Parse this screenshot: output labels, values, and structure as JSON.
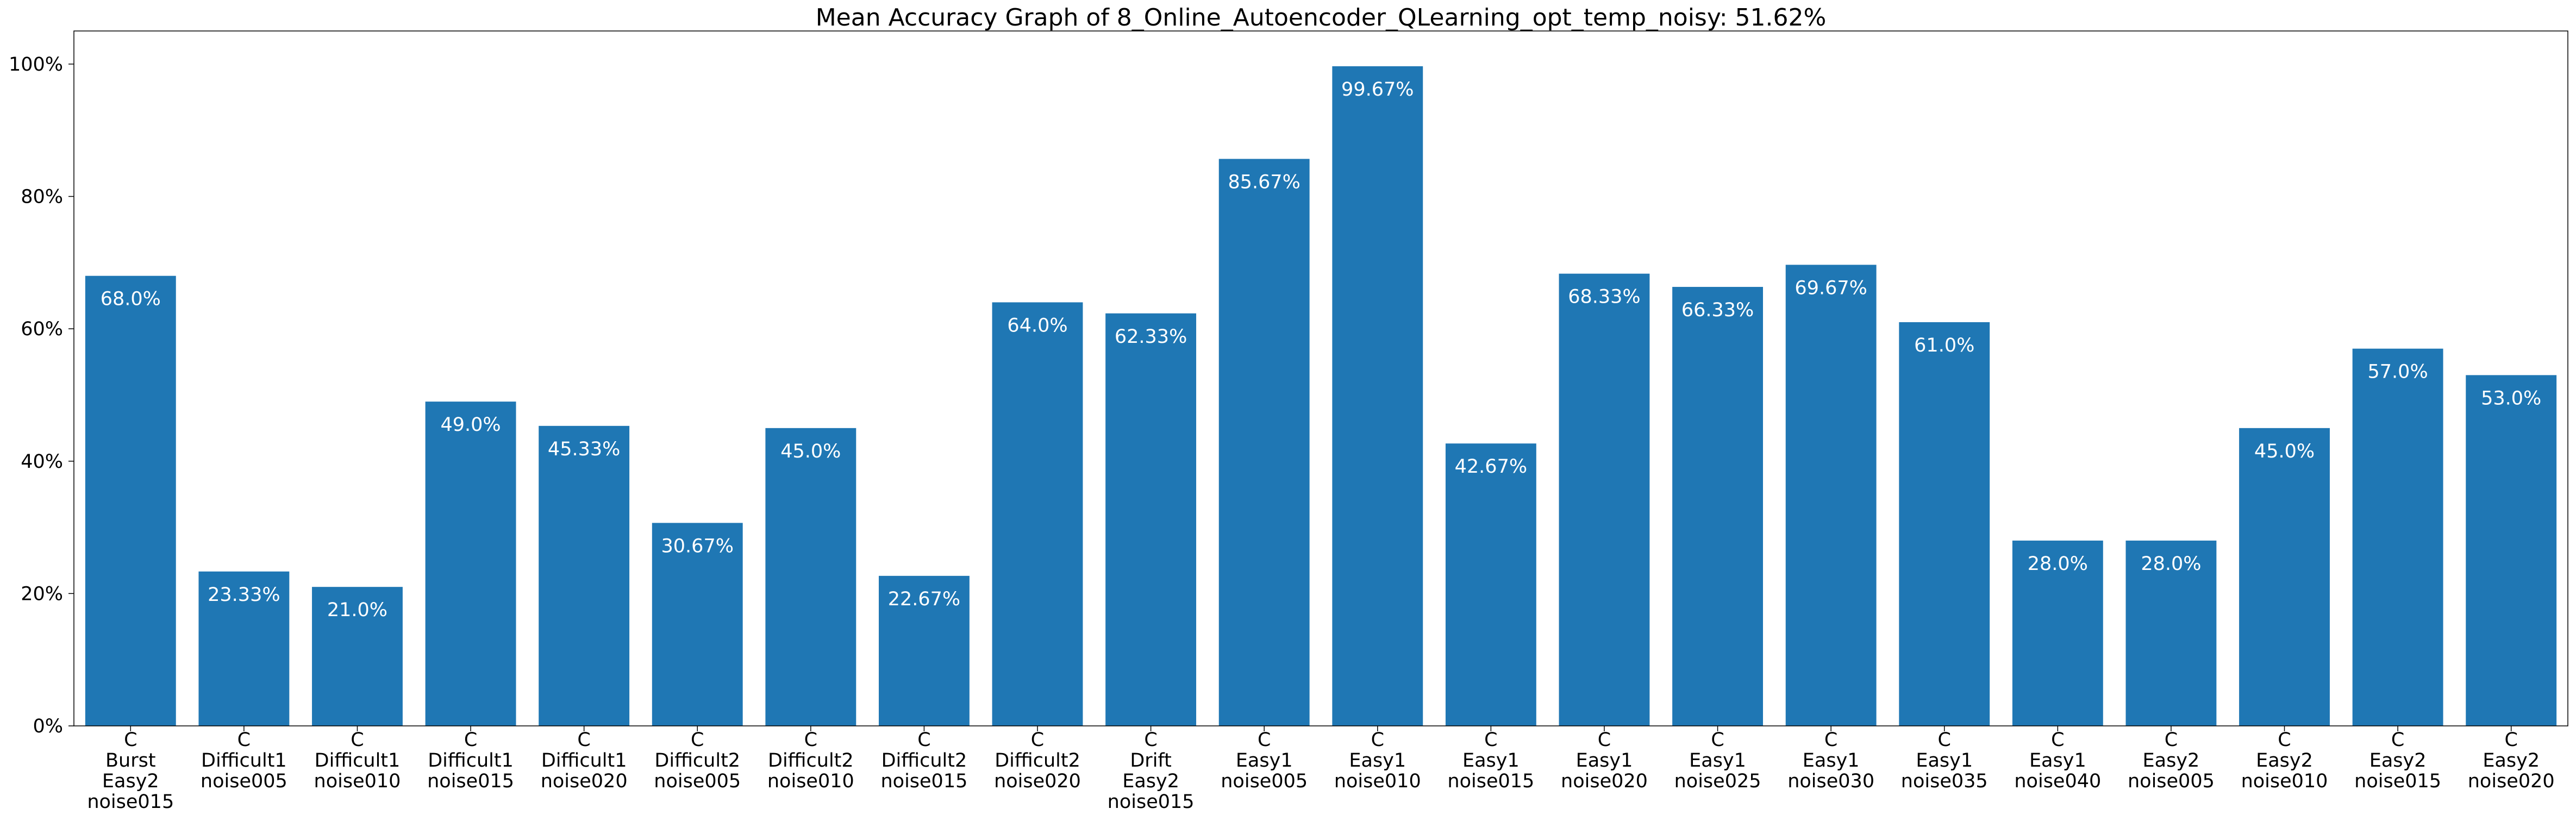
{
  "chart_data": {
    "type": "bar",
    "title": "Mean Accuracy Graph of 8_Online_Autoencoder_QLearning_opt_temp_noisy: 51.62%",
    "xlabel": "",
    "ylabel": "",
    "ylim": [
      0,
      105
    ],
    "yticks": [
      0,
      20,
      40,
      60,
      80,
      100
    ],
    "ytick_labels": [
      "0%",
      "20%",
      "40%",
      "60%",
      "80%",
      "100%"
    ],
    "bar_color": "#1f77b4",
    "grid": false,
    "categories": [
      [
        "C",
        "Burst",
        "Easy2",
        "noise015"
      ],
      [
        "C",
        "Difficult1",
        "noise005"
      ],
      [
        "C",
        "Difficult1",
        "noise010"
      ],
      [
        "C",
        "Difficult1",
        "noise015"
      ],
      [
        "C",
        "Difficult1",
        "noise020"
      ],
      [
        "C",
        "Difficult2",
        "noise005"
      ],
      [
        "C",
        "Difficult2",
        "noise010"
      ],
      [
        "C",
        "Difficult2",
        "noise015"
      ],
      [
        "C",
        "Difficult2",
        "noise020"
      ],
      [
        "C",
        "Drift",
        "Easy2",
        "noise015"
      ],
      [
        "C",
        "Easy1",
        "noise005"
      ],
      [
        "C",
        "Easy1",
        "noise010"
      ],
      [
        "C",
        "Easy1",
        "noise015"
      ],
      [
        "C",
        "Easy1",
        "noise020"
      ],
      [
        "C",
        "Easy1",
        "noise025"
      ],
      [
        "C",
        "Easy1",
        "noise030"
      ],
      [
        "C",
        "Easy1",
        "noise035"
      ],
      [
        "C",
        "Easy1",
        "noise040"
      ],
      [
        "C",
        "Easy2",
        "noise005"
      ],
      [
        "C",
        "Easy2",
        "noise010"
      ],
      [
        "C",
        "Easy2",
        "noise015"
      ],
      [
        "C",
        "Easy2",
        "noise020"
      ]
    ],
    "values": [
      68.0,
      23.33,
      21.0,
      49.0,
      45.33,
      30.67,
      45.0,
      22.67,
      64.0,
      62.33,
      85.67,
      99.67,
      42.67,
      68.33,
      66.33,
      69.67,
      61.0,
      28.0,
      28.0,
      45.0,
      57.0,
      53.0
    ],
    "data_labels": [
      "68.0%",
      "23.33%",
      "21.0%",
      "49.0%",
      "45.33%",
      "30.67%",
      "45.0%",
      "22.67%",
      "64.0%",
      "62.33%",
      "85.67%",
      "99.67%",
      "42.67%",
      "68.33%",
      "66.33%",
      "69.67%",
      "61.0%",
      "28.0%",
      "28.0%",
      "45.0%",
      "57.0%",
      "53.0%"
    ]
  }
}
